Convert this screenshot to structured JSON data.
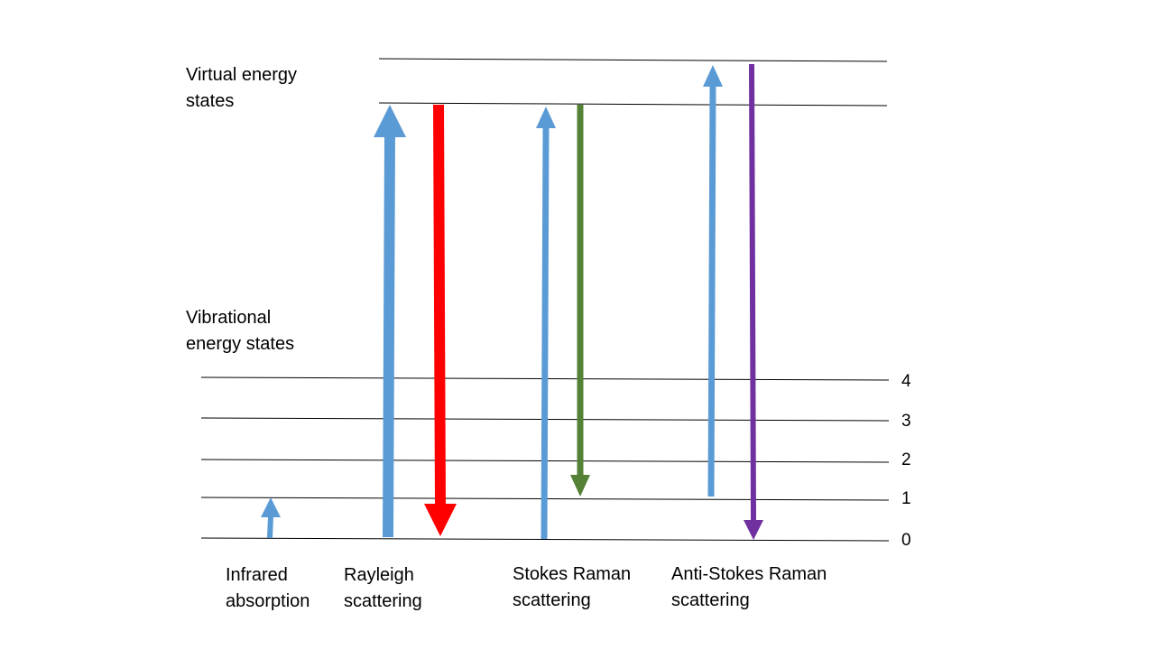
{
  "labels": {
    "virtual": [
      "Virtual energy",
      "states"
    ],
    "vibrational": [
      "Vibrational",
      "energy states"
    ],
    "levels": [
      "0",
      "1",
      "2",
      "3",
      "4"
    ],
    "processes": {
      "infrared": [
        "Infrared",
        "absorption"
      ],
      "rayleigh": [
        "Rayleigh",
        "scattering"
      ],
      "stokes": [
        "Stokes Raman",
        "scattering"
      ],
      "anti_stokes": [
        "Anti-Stokes Raman",
        "scattering"
      ]
    }
  },
  "colors": {
    "excitation": "#5b9bd5",
    "rayleigh": "#ff0000",
    "stokes": "#538135",
    "anti_stokes": "#7030a0",
    "lines": "#000000"
  },
  "transitions": [
    {
      "name": "infrared-absorption-arrow",
      "from_level": "0",
      "to_level": "1",
      "color_key": "excitation"
    },
    {
      "name": "rayleigh-excitation-arrow",
      "from_level": "0",
      "to_level": "virtual-lower",
      "color_key": "excitation"
    },
    {
      "name": "rayleigh-emission-arrow",
      "from_level": "virtual-lower",
      "to_level": "0",
      "color_key": "rayleigh"
    },
    {
      "name": "stokes-excitation-arrow",
      "from_level": "0",
      "to_level": "virtual-lower",
      "color_key": "excitation"
    },
    {
      "name": "stokes-emission-arrow",
      "from_level": "virtual-lower",
      "to_level": "1",
      "color_key": "stokes"
    },
    {
      "name": "anti-stokes-excitation-arrow",
      "from_level": "1",
      "to_level": "virtual-upper",
      "color_key": "excitation"
    },
    {
      "name": "anti-stokes-emission-arrow",
      "from_level": "virtual-upper",
      "to_level": "0",
      "color_key": "anti_stokes"
    }
  ]
}
